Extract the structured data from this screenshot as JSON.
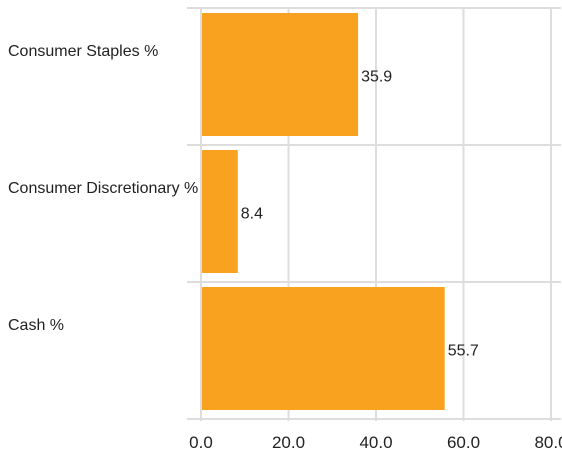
{
  "chart_data": {
    "type": "bar",
    "orientation": "horizontal",
    "categories": [
      "Consumer Staples %",
      "Consumer Discretionary %",
      "Cash %"
    ],
    "values": [
      35.9,
      8.4,
      55.7
    ],
    "value_labels": [
      "35.9",
      "8.4",
      "55.7"
    ],
    "xlim": [
      0,
      80
    ],
    "xticks": [
      0,
      20,
      40,
      60,
      80
    ],
    "xtick_labels": [
      "0.0",
      "20.0",
      "40.0",
      "60.0",
      "80.0"
    ],
    "grid": true,
    "legend": "none",
    "title": "",
    "xlabel": "",
    "ylabel": ""
  },
  "colors": {
    "bar": "#F9A21F",
    "grid": "#DDDDDD",
    "text": "#222222"
  }
}
